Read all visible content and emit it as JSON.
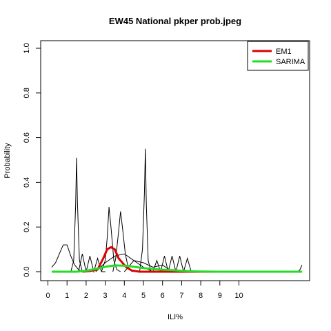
{
  "chart_data": {
    "type": "line",
    "title": "EW45 National pkper prob.jpeg",
    "xlabel": "ILI%",
    "ylabel": "Probability",
    "xlim": [
      0,
      13.5
    ],
    "ylim": [
      0,
      1.0
    ],
    "x_ticks": [
      0,
      1,
      2,
      3,
      4,
      5,
      6,
      7,
      8,
      9,
      10
    ],
    "x_tick_labels": [
      "0",
      "1",
      "2",
      "3",
      "4",
      "5",
      "6",
      "7",
      "8",
      "9",
      "10"
    ],
    "y_ticks": [
      0.0,
      0.2,
      0.4,
      0.6,
      0.8,
      1.0
    ],
    "y_tick_labels": [
      "0.0",
      "0.2",
      "0.4",
      "0.6",
      "0.8",
      "1.0"
    ],
    "grid": false,
    "legend_position": "top-right",
    "series": [
      {
        "name": "EM1",
        "color": "#dd0000",
        "x": [
          1.8,
          2.2,
          2.6,
          2.9,
          3.1,
          3.3,
          3.5,
          3.6,
          3.7,
          3.9,
          4.1,
          4.4,
          4.8,
          5.5,
          6.5,
          8.0,
          13.3
        ],
        "y": [
          0.0,
          0.003,
          0.01,
          0.06,
          0.1,
          0.11,
          0.1,
          0.08,
          0.06,
          0.04,
          0.02,
          0.005,
          0.0,
          0.0,
          0.0,
          0.0,
          0.0
        ]
      },
      {
        "name": "SARIMA",
        "color": "#22dd22",
        "x": [
          0.2,
          1.0,
          1.5,
          2.0,
          2.5,
          3.0,
          3.5,
          4.0,
          4.5,
          5.0,
          5.5,
          6.0,
          6.5,
          7.0,
          7.5,
          8.0,
          9.0,
          13.3
        ],
        "y": [
          0.0,
          0.0,
          0.0,
          0.004,
          0.012,
          0.022,
          0.028,
          0.027,
          0.022,
          0.016,
          0.012,
          0.009,
          0.007,
          0.004,
          0.002,
          0.001,
          0.0,
          0.0
        ]
      }
    ],
    "background_curves": [
      {
        "x": [
          0.2,
          0.4,
          0.6,
          0.8,
          1.0,
          1.2,
          1.4,
          1.6,
          1.8,
          2.0
        ],
        "y": [
          0.02,
          0.04,
          0.08,
          0.12,
          0.12,
          0.07,
          0.03,
          0.01,
          0.0,
          0.0
        ]
      },
      {
        "x": [
          1.2,
          1.35,
          1.45,
          1.5,
          1.55,
          1.65,
          1.8,
          2.0
        ],
        "y": [
          0.0,
          0.05,
          0.3,
          0.51,
          0.3,
          0.05,
          0.0,
          0.0
        ]
      },
      {
        "x": [
          2.8,
          3.0,
          3.1,
          3.2,
          3.3,
          3.45,
          3.6,
          3.8
        ],
        "y": [
          0.0,
          0.05,
          0.15,
          0.29,
          0.2,
          0.05,
          0.01,
          0.0
        ]
      },
      {
        "x": [
          3.4,
          3.55,
          3.7,
          3.8,
          3.9,
          4.05,
          4.2,
          4.4
        ],
        "y": [
          0.0,
          0.06,
          0.18,
          0.27,
          0.2,
          0.08,
          0.02,
          0.0
        ]
      },
      {
        "x": [
          4.8,
          4.95,
          5.05,
          5.1,
          5.15,
          5.25,
          5.4
        ],
        "y": [
          0.0,
          0.1,
          0.35,
          0.55,
          0.3,
          0.05,
          0.0
        ]
      },
      {
        "x": [
          5.5,
          5.7,
          5.9,
          6.1,
          6.3,
          6.5,
          6.7,
          6.9,
          7.1,
          7.3,
          7.5,
          7.7
        ],
        "y": [
          0.0,
          0.05,
          0.0,
          0.07,
          0.0,
          0.07,
          0.0,
          0.07,
          0.0,
          0.06,
          0.0,
          0.0
        ]
      },
      {
        "x": [
          1.6,
          1.8,
          2.0,
          2.2,
          2.4,
          2.6,
          2.8,
          3.0
        ],
        "y": [
          0.0,
          0.08,
          0.0,
          0.07,
          0.0,
          0.06,
          0.0,
          0.0
        ]
      },
      {
        "x": [
          2.5,
          3.0,
          3.5,
          4.0,
          4.5,
          5.0,
          5.5
        ],
        "y": [
          0.0,
          0.04,
          0.07,
          0.08,
          0.05,
          0.02,
          0.0
        ]
      },
      {
        "x": [
          4.0,
          4.5,
          5.0,
          5.5,
          6.0,
          6.5
        ],
        "y": [
          0.0,
          0.05,
          0.04,
          0.02,
          0.03,
          0.0
        ]
      },
      {
        "x": [
          13.0,
          13.1,
          13.2,
          13.3
        ],
        "y": [
          0.0,
          0.0,
          0.01,
          0.03
        ]
      }
    ]
  }
}
